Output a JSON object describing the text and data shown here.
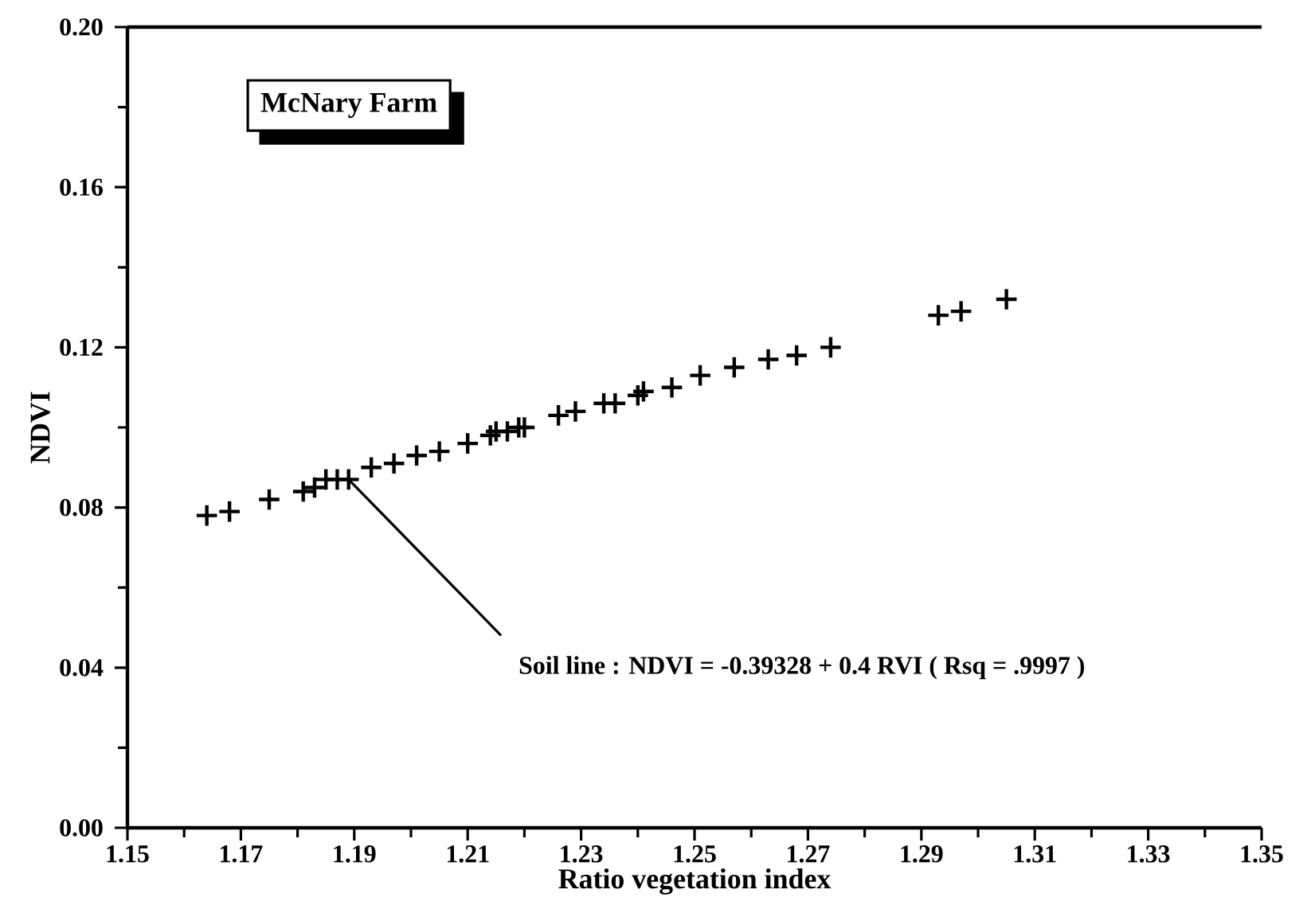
{
  "chart_data": {
    "type": "scatter",
    "xlabel": "Ratio vegetation index",
    "ylabel": "NDVI",
    "x": [
      1.164,
      1.168,
      1.175,
      1.181,
      1.183,
      1.185,
      1.187,
      1.189,
      1.193,
      1.197,
      1.201,
      1.205,
      1.21,
      1.214,
      1.215,
      1.217,
      1.219,
      1.22,
      1.226,
      1.229,
      1.234,
      1.236,
      1.24,
      1.241,
      1.246,
      1.251,
      1.257,
      1.263,
      1.268,
      1.274,
      1.293,
      1.297,
      1.305
    ],
    "series": [
      {
        "color": "#000000",
        "values": [
          0.078,
          0.079,
          0.082,
          0.084,
          0.085,
          0.087,
          0.087,
          0.087,
          0.09,
          0.091,
          0.093,
          0.094,
          0.096,
          0.098,
          0.099,
          0.099,
          0.1,
          0.1,
          0.103,
          0.104,
          0.106,
          0.106,
          0.108,
          0.109,
          0.11,
          0.113,
          0.115,
          0.117,
          0.118,
          0.12,
          0.128,
          0.129,
          0.132
        ]
      }
    ],
    "marker": "cross",
    "xlim": [
      1.15,
      1.35
    ],
    "ylim": [
      0,
      0.2
    ],
    "xticks": [
      1.15,
      1.17,
      1.19,
      1.21,
      1.23,
      1.25,
      1.27,
      1.29,
      1.31,
      1.33,
      1.35
    ],
    "yticks": [
      {
        "value": 0,
        "label": "0.00"
      },
      {
        "value": 0.04,
        "label": "0.04"
      },
      {
        "value": 0.08,
        "label": "0.08"
      },
      {
        "value": 0.12,
        "label": "0.12"
      },
      {
        "value": 0.16,
        "label": "0.16"
      },
      {
        "value": 0.2,
        "label": "0.20"
      }
    ],
    "annotations": [
      "McNary Farm",
      {
        "text": "Soil line : NDVI = -0.39328 + 0.4 RVI ( Rsq = .9997 )",
        "x": 1.189,
        "y": 0.087
      }
    ]
  }
}
